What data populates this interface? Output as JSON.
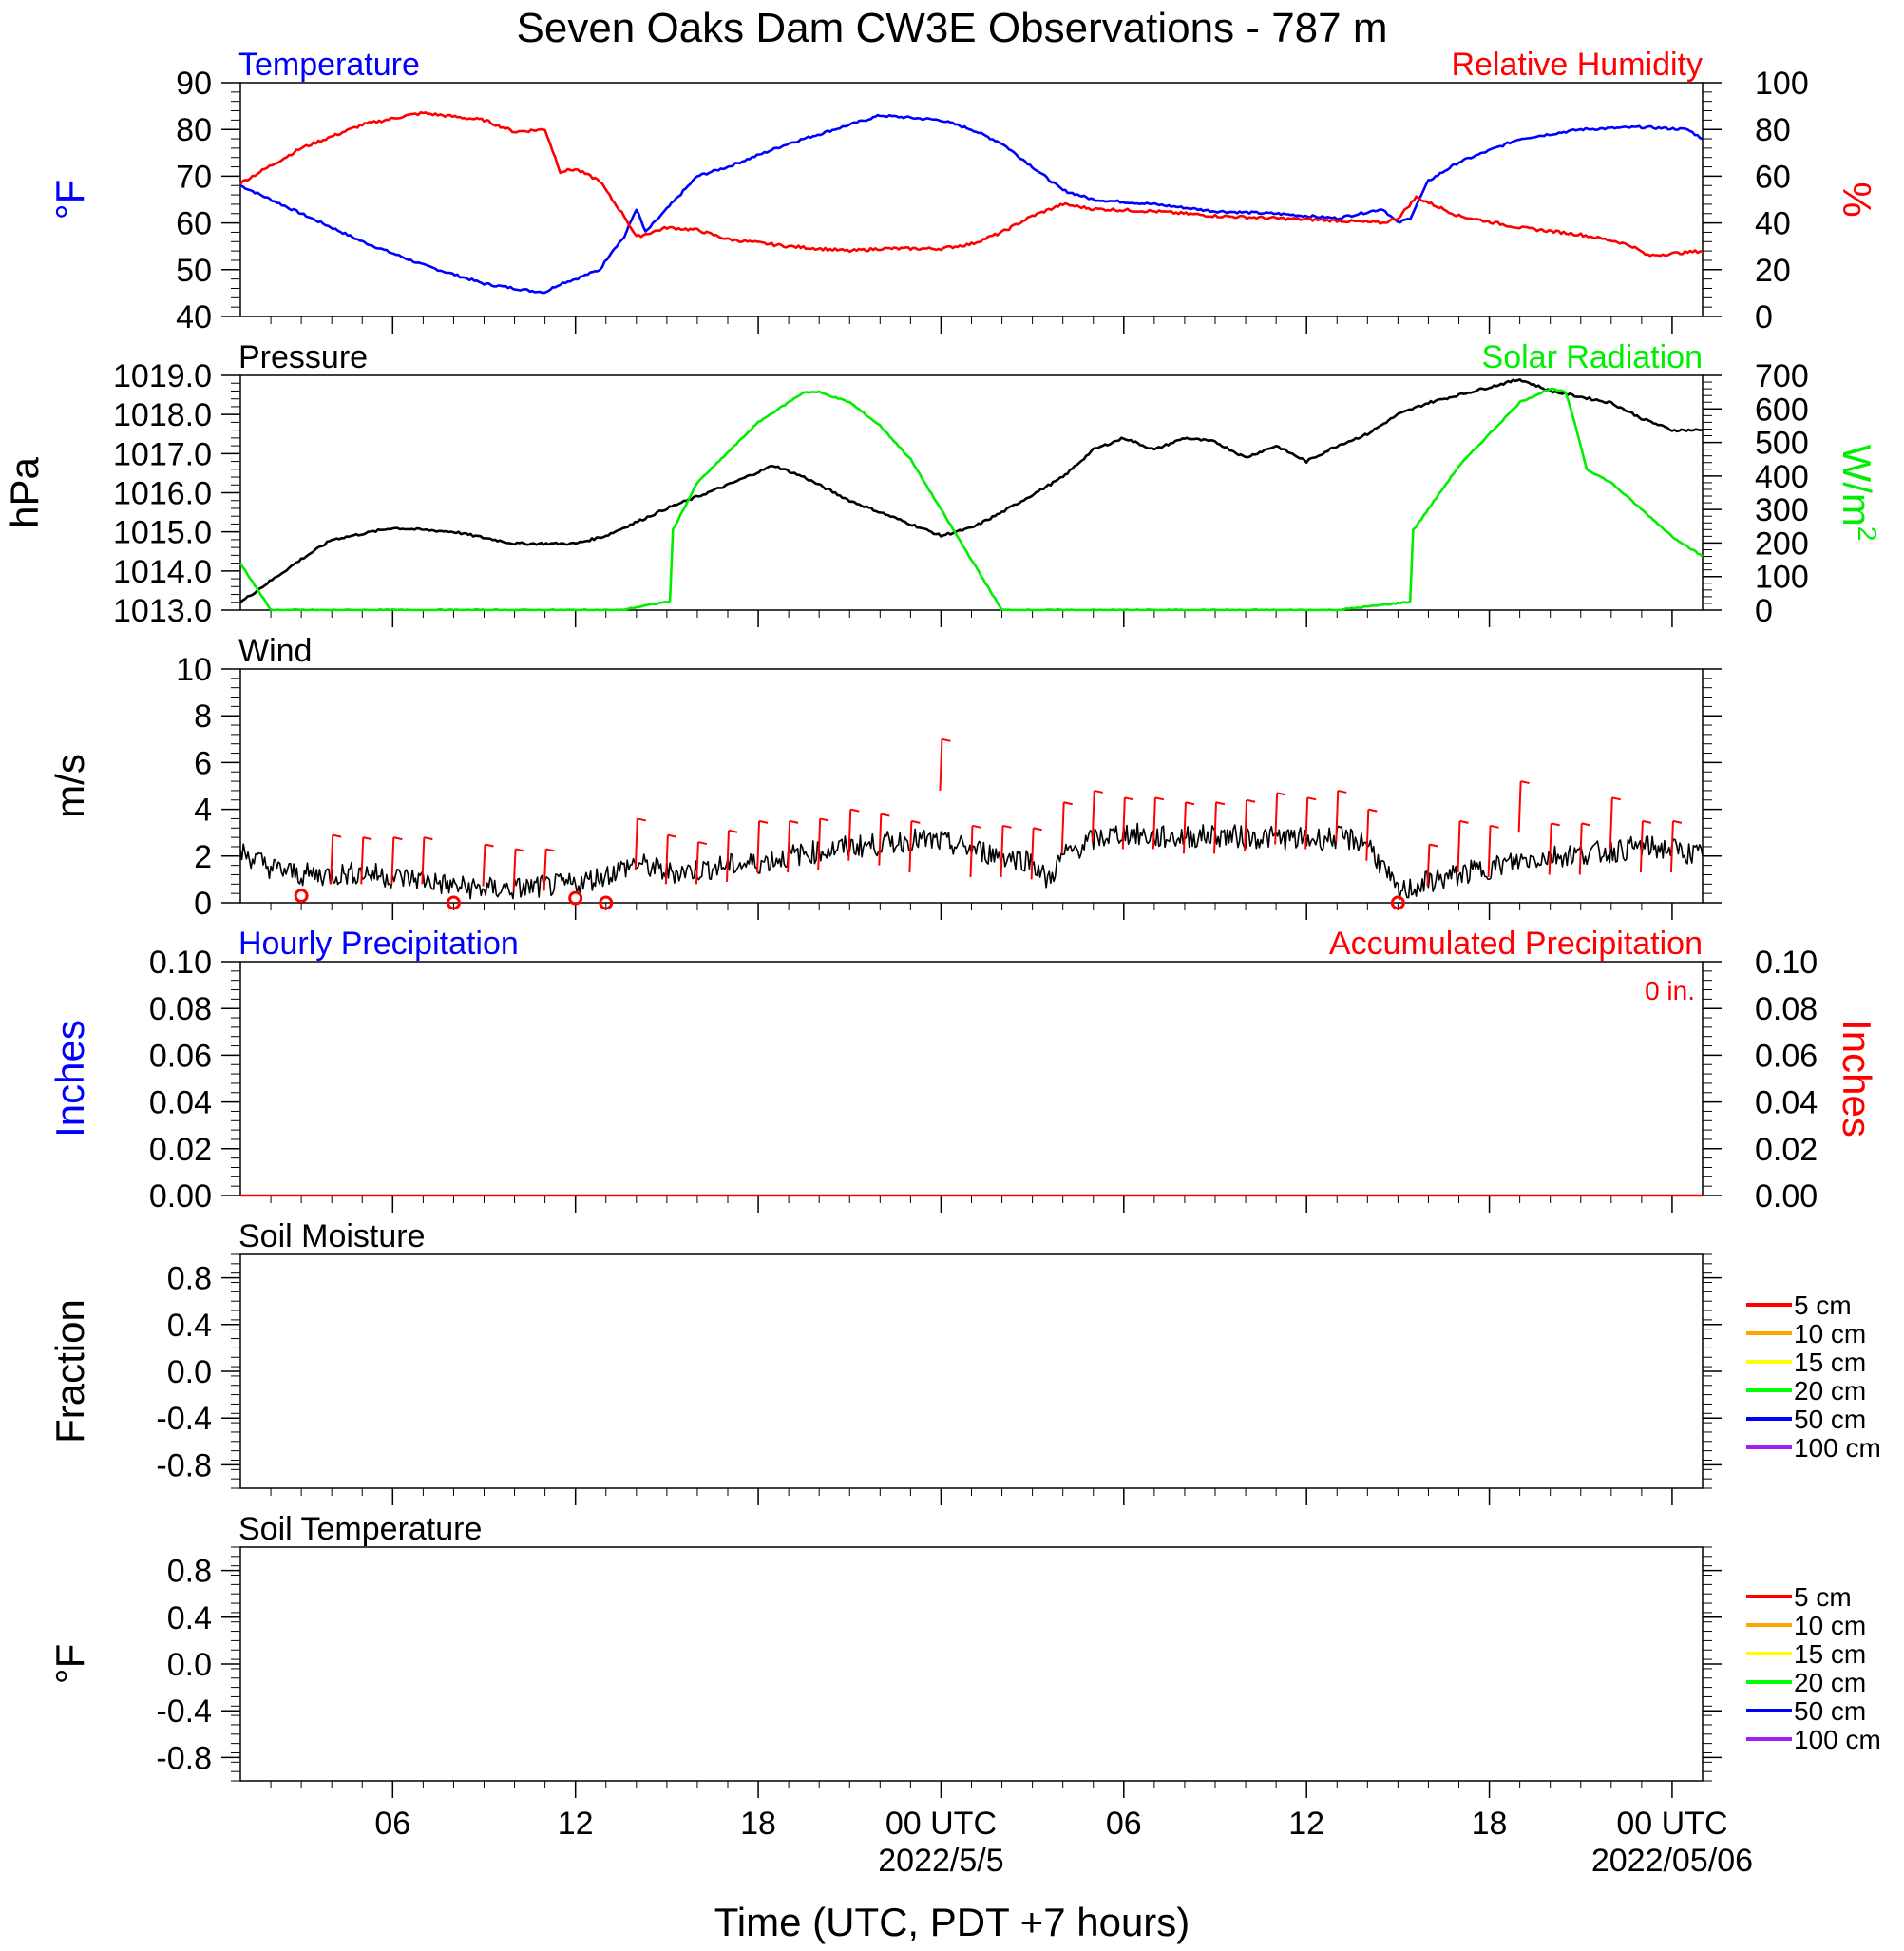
{
  "title": "Seven Oaks Dam CW3E Observations - 787 m",
  "xaxis": {
    "label": "Time (UTC, PDT +7 hours)",
    "range_hours": [
      0,
      48
    ],
    "ticks": [
      {
        "h": 5,
        "label": "06"
      },
      {
        "h": 11,
        "label": "12"
      },
      {
        "h": 17,
        "label": "18"
      },
      {
        "h": 23,
        "label": "00 UTC"
      },
      {
        "h": 29,
        "label": "06"
      },
      {
        "h": 35,
        "label": "12"
      },
      {
        "h": 41,
        "label": "18"
      },
      {
        "h": 47,
        "label": "00 UTC"
      }
    ],
    "date_labels": [
      {
        "h": 23,
        "label": "2022/5/5"
      },
      {
        "h": 47,
        "label": "2022/05/06"
      }
    ]
  },
  "colors": {
    "temperature": "#0000ff",
    "humidity": "#ff0000",
    "pressure": "#000000",
    "solar": "#00ee00",
    "wind": "#000000",
    "gust": "#ff0000",
    "hourly_precip": "#0000ff",
    "accum_precip": "#ff0000"
  },
  "chart_data": [
    {
      "type": "line",
      "panel": "temperature-humidity",
      "left_title": "Temperature",
      "right_title": "Relative Humidity",
      "ylabel_left": "°F",
      "ylabel_right": "%",
      "ylim_left": [
        40,
        90
      ],
      "ylim_right": [
        0,
        100
      ],
      "yticks_left": [
        "40",
        "50",
        "60",
        "70",
        "80",
        "90"
      ],
      "yticks_right": [
        "0",
        "20",
        "40",
        "60",
        "80",
        "100"
      ],
      "series": [
        {
          "key": "temperature",
          "axis": "left",
          "x": [
            0,
            2,
            4,
            6,
            8,
            9.5,
            10,
            10.5,
            11,
            11.8,
            12.2,
            12.6,
            13,
            13.3,
            14,
            15,
            16,
            18,
            20,
            21,
            22,
            23,
            24,
            25,
            26,
            27,
            28,
            30,
            32,
            34,
            36,
            37.5,
            38,
            38.4,
            39,
            40,
            42,
            44,
            46,
            47.5,
            48
          ],
          "y": [
            68,
            62,
            56,
            51,
            47,
            45.5,
            45.2,
            47,
            48,
            50,
            54,
            57,
            63,
            58,
            63,
            70,
            72,
            77,
            81,
            83,
            82.5,
            82,
            80,
            77,
            72,
            67,
            65,
            64,
            62.5,
            62,
            61,
            63,
            60,
            61,
            69,
            73,
            78,
            80,
            80.5,
            80,
            78
          ]
        },
        {
          "key": "humidity",
          "axis": "right",
          "x": [
            0,
            2,
            4,
            5.5,
            6,
            8,
            9,
            10,
            10.5,
            11,
            11.8,
            12.2,
            12.6,
            13,
            14,
            15,
            16,
            18,
            20,
            21,
            22,
            23,
            24,
            25,
            26,
            27,
            28,
            30,
            32,
            34,
            36,
            37.5,
            38,
            38.6,
            40,
            42,
            44,
            45.2,
            45.7,
            46.2,
            48
          ],
          "y": [
            57,
            72,
            82,
            86,
            87,
            84,
            79,
            80,
            62,
            63,
            58,
            50,
            43,
            34,
            38,
            37,
            33,
            30,
            28,
            29,
            29,
            29,
            31,
            36,
            43,
            48,
            46,
            45,
            43,
            42,
            41,
            40,
            42,
            51,
            43,
            38,
            35,
            32,
            30,
            26,
            28
          ]
        }
      ]
    },
    {
      "type": "line",
      "panel": "pressure-solar",
      "left_title": "Pressure",
      "right_title": "Solar Radiation",
      "ylabel_left": "hPa",
      "ylabel_right": "W/m",
      "ylabel_right_sup": "2",
      "ylim_left": [
        1013,
        1019
      ],
      "ylim_right": [
        0,
        700
      ],
      "yticks_left": [
        "1013.0",
        "1014.0",
        "1015.0",
        "1016.0",
        "1017.0",
        "1018.0",
        "1019.0"
      ],
      "yticks_right": [
        "0",
        "100",
        "200",
        "300",
        "400",
        "500",
        "600",
        "700"
      ],
      "series": [
        {
          "key": "pressure",
          "axis": "left",
          "x": [
            0,
            2,
            3,
            5,
            7,
            9,
            11,
            12,
            14,
            16,
            17.5,
            18.5,
            20,
            23,
            24,
            25,
            27,
            28,
            29,
            30,
            31,
            32,
            33,
            34,
            35,
            36,
            37,
            38,
            39,
            40,
            41,
            42,
            43,
            45,
            46,
            47,
            48
          ],
          "y": [
            1013.2,
            1014.3,
            1014.8,
            1015.1,
            1015.0,
            1014.7,
            1014.7,
            1014.9,
            1015.6,
            1016.2,
            1016.7,
            1016.4,
            1015.8,
            1014.9,
            1015.1,
            1015.5,
            1016.4,
            1017.1,
            1017.4,
            1017.1,
            1017.4,
            1017.3,
            1016.9,
            1017.2,
            1016.8,
            1017.2,
            1017.5,
            1018.0,
            1018.3,
            1018.5,
            1018.7,
            1018.9,
            1018.6,
            1018.3,
            1017.9,
            1017.6,
            1017.6
          ]
        },
        {
          "key": "solar",
          "axis": "right",
          "x": [
            0,
            1,
            12.5,
            14.0,
            14.1,
            14.2,
            15,
            17,
            18.5,
            19,
            20,
            21,
            22,
            23,
            24,
            25,
            28,
            36,
            38.4,
            38.5,
            38.6,
            40,
            42,
            43,
            43.5,
            43.8,
            44.2,
            45,
            46,
            47,
            48
          ],
          "y": [
            140,
            0,
            0,
            25,
            25,
            240,
            380,
            560,
            650,
            650,
            620,
            550,
            450,
            300,
            150,
            0,
            0,
            0,
            25,
            240,
            250,
            430,
            620,
            660,
            650,
            560,
            420,
            380,
            300,
            220,
            160
          ]
        }
      ]
    },
    {
      "type": "line",
      "panel": "wind",
      "left_title": "Wind",
      "ylabel_left": "m/s",
      "ylim_left": [
        0,
        10
      ],
      "yticks_left": [
        "0",
        "2",
        "4",
        "6",
        "8",
        "10"
      ],
      "series": [
        {
          "key": "wind",
          "axis": "left",
          "x": [
            0,
            1,
            2,
            3,
            4,
            5,
            6,
            7,
            8,
            9,
            10,
            11,
            12,
            13,
            14,
            15,
            16,
            17,
            18,
            19,
            20,
            21,
            22,
            23,
            24,
            25,
            26,
            26.5,
            27,
            28,
            29,
            30,
            31,
            32,
            33,
            34,
            35,
            36,
            37,
            37.5,
            38,
            39,
            40,
            41,
            42,
            43,
            44,
            45,
            46,
            47,
            48
          ],
          "y": [
            2.2,
            1.5,
            1.2,
            1.2,
            1.3,
            1.1,
            1.0,
            0.7,
            0.6,
            0.6,
            0.7,
            0.8,
            1.2,
            1.7,
            1.3,
            1.4,
            1.6,
            1.7,
            2.0,
            2.2,
            2.4,
            2.5,
            2.7,
            2.6,
            2.3,
            2.0,
            1.8,
            0.9,
            2.0,
            2.7,
            3.0,
            2.8,
            2.8,
            2.9,
            2.8,
            2.8,
            2.7,
            2.8,
            2.6,
            1.5,
            0.4,
            0.9,
            1.2,
            1.5,
            1.8,
            2.0,
            2.1,
            2.2,
            2.4,
            2.3,
            2.0
          ]
        },
        {
          "key": "gust_barbs",
          "axis": "left",
          "x": [
            2,
            3,
            4,
            5,
            6,
            7,
            8,
            9,
            10,
            11,
            12,
            13,
            14,
            15,
            16,
            17,
            18,
            19,
            20,
            21,
            22,
            23,
            24,
            25,
            26,
            27,
            28,
            29,
            30,
            31,
            32,
            33,
            34,
            35,
            36,
            37,
            38,
            39,
            40,
            41,
            42,
            43,
            44,
            45,
            46,
            47
          ],
          "y": [
            0.3,
            2.9,
            2.8,
            2.8,
            2.8,
            0.0,
            2.5,
            2.3,
            2.3,
            0.2,
            0.0,
            3.6,
            2.9,
            2.6,
            3.1,
            3.5,
            3.5,
            3.6,
            4.0,
            3.8,
            3.5,
            7.0,
            3.3,
            3.3,
            3.2,
            4.3,
            4.8,
            4.5,
            4.5,
            4.3,
            4.3,
            4.4,
            4.7,
            4.5,
            4.8,
            4.0,
            0.0,
            2.5,
            3.5,
            3.3,
            5.2,
            3.4,
            3.4,
            4.5,
            3.5,
            3.5
          ]
        }
      ]
    },
    {
      "type": "line",
      "panel": "precipitation",
      "left_title": "Hourly Precipitation",
      "right_title": "Accumulated Precipitation",
      "annotation": "0 in.",
      "ylabel_left": "Inches",
      "ylabel_right": "Inches",
      "ylim_left": [
        0,
        0.1
      ],
      "ylim_right": [
        0,
        0.1
      ],
      "yticks_left": [
        "0.00",
        "0.02",
        "0.04",
        "0.06",
        "0.08",
        "0.10"
      ],
      "yticks_right": [
        "0.00",
        "0.02",
        "0.04",
        "0.06",
        "0.08",
        "0.10"
      ],
      "series": [
        {
          "key": "accum_precip",
          "axis": "left",
          "x": [
            0,
            48
          ],
          "y": [
            0,
            0
          ]
        }
      ]
    },
    {
      "type": "line",
      "panel": "soil-moisture",
      "left_title": "Soil Moisture",
      "ylabel_left": "Fraction",
      "ylim_left": [
        -1,
        1
      ],
      "yticks_left": [
        "-0.8",
        "-0.4",
        "0.0",
        "0.4",
        "0.8"
      ],
      "series": []
    },
    {
      "type": "line",
      "panel": "soil-temperature",
      "left_title": "Soil Temperature",
      "ylabel_left": "°F",
      "ylim_left": [
        -1,
        1
      ],
      "yticks_left": [
        "-0.8",
        "-0.4",
        "0.0",
        "0.4",
        "0.8"
      ],
      "series": []
    }
  ],
  "soil_legend": [
    {
      "label": "5 cm",
      "color": "#ff0000"
    },
    {
      "label": "10 cm",
      "color": "#ffa500"
    },
    {
      "label": "15 cm",
      "color": "#ffff00"
    },
    {
      "label": "20 cm",
      "color": "#00ff00"
    },
    {
      "label": "50 cm",
      "color": "#0000ff"
    },
    {
      "label": "100 cm",
      "color": "#a020f0"
    }
  ]
}
